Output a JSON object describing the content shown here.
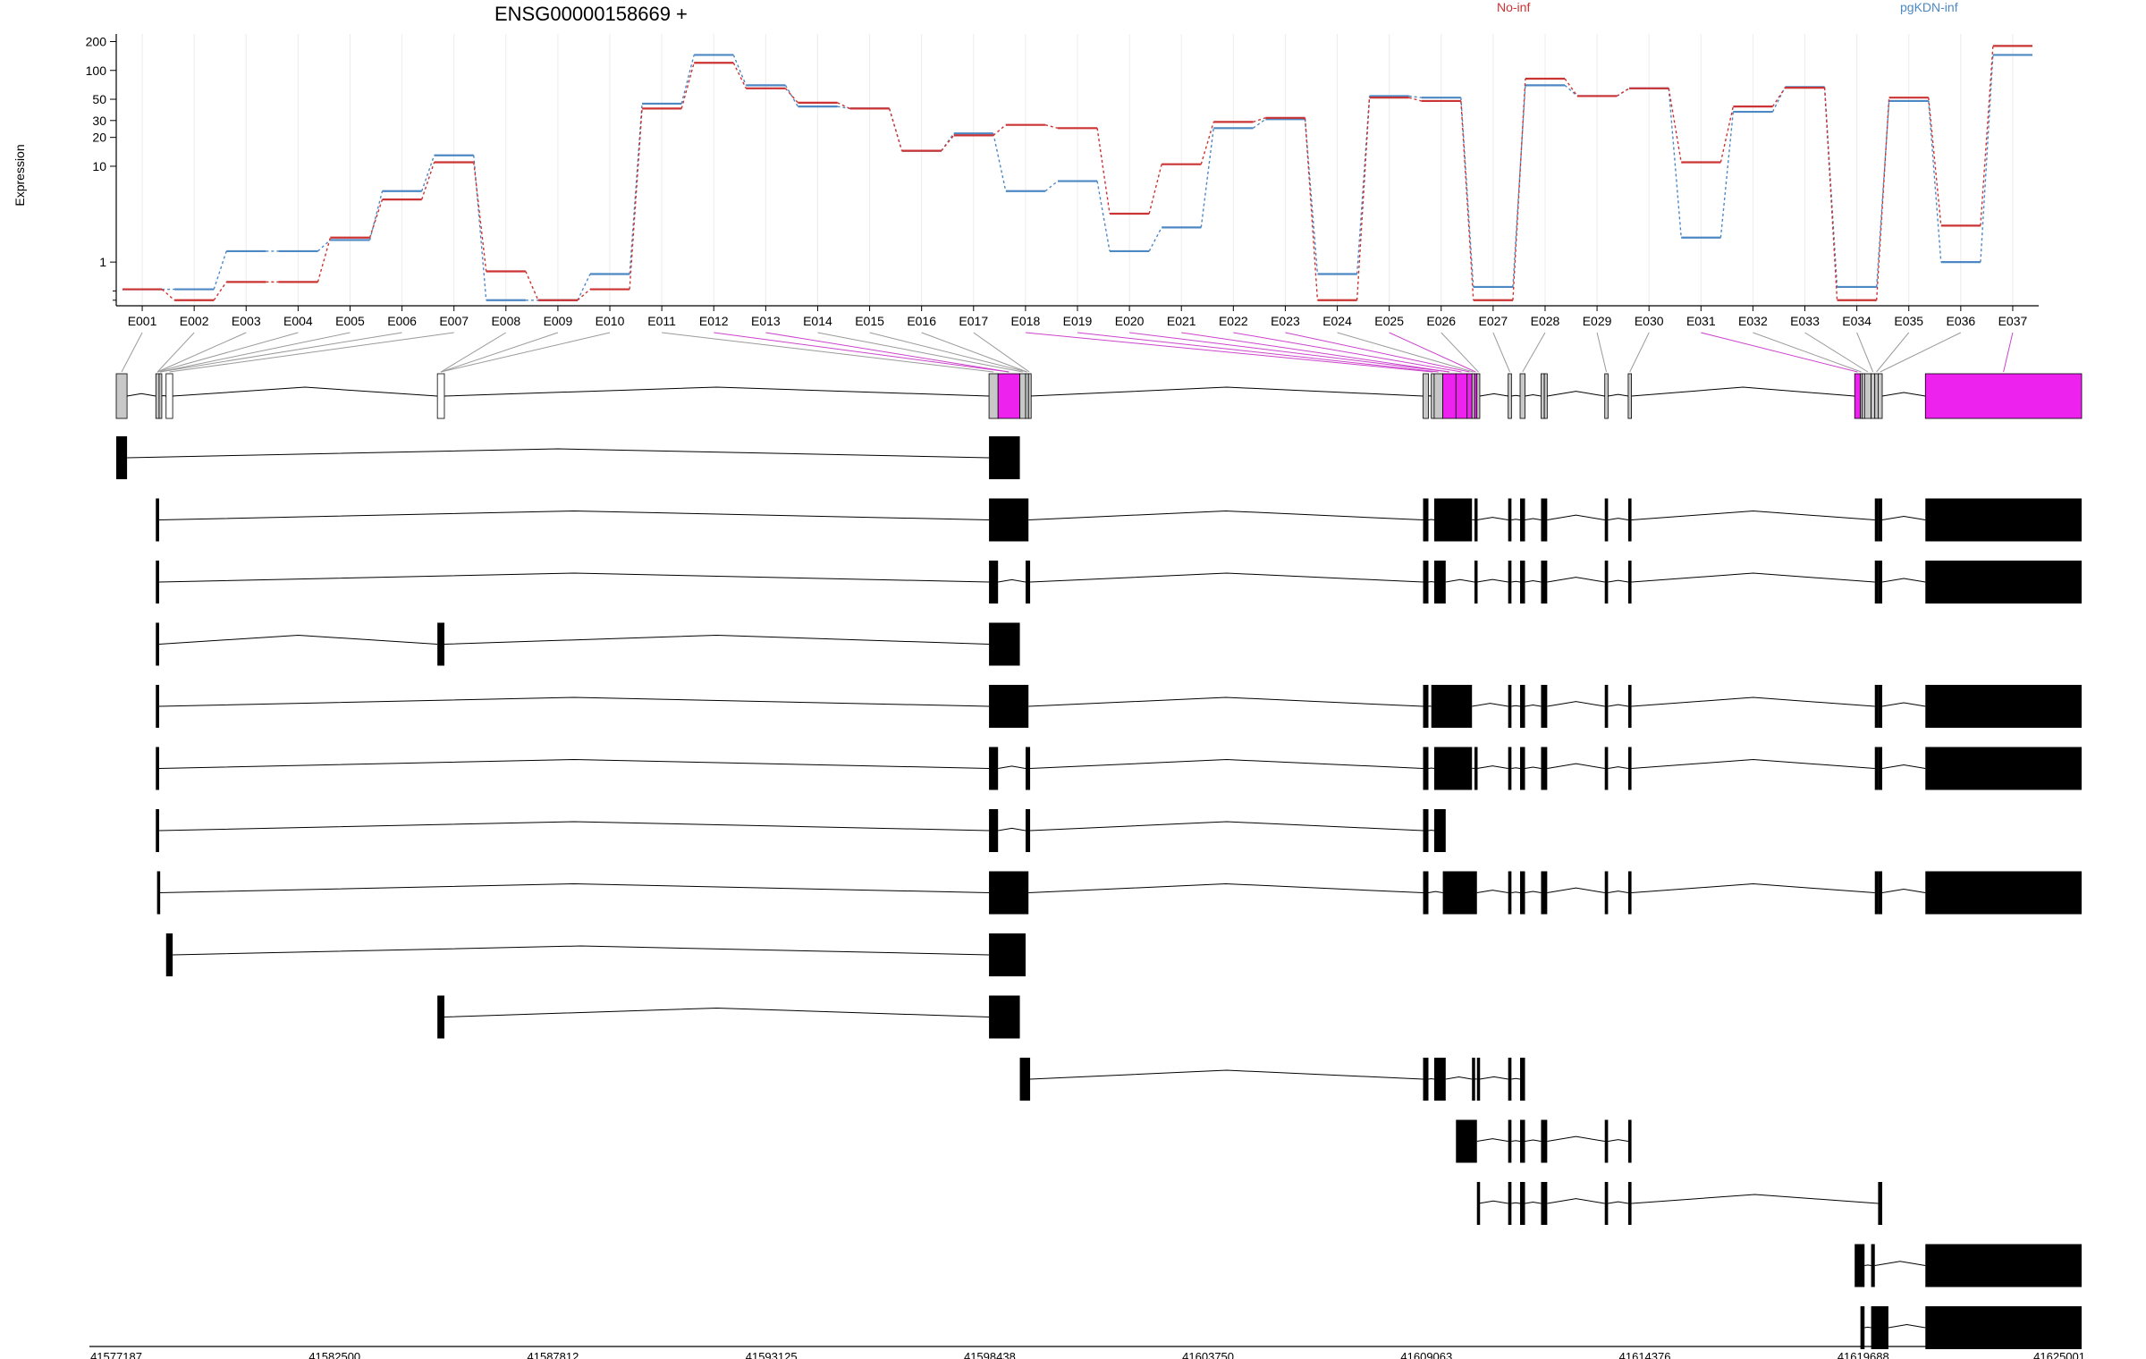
{
  "title": "ENSG00000158669 +",
  "ylabel": "Expression",
  "legend": [
    {
      "name": "No-inf",
      "color": "#cc3333"
    },
    {
      "name": "pgKDN-inf",
      "color": "#4d88c4"
    }
  ],
  "chart_data": {
    "type": "line",
    "title": "ENSG00000158669 +",
    "ylabel": "Expression",
    "y_scale": "log",
    "ylim": [
      0.35,
      240
    ],
    "y_ticks": [
      {
        "v": 1,
        "label": "1"
      },
      {
        "v": 10,
        "label": "10"
      },
      {
        "v": 20,
        "label": "20"
      },
      {
        "v": 30,
        "label": "30"
      },
      {
        "v": 50,
        "label": "50"
      },
      {
        "v": 100,
        "label": "100"
      },
      {
        "v": 200,
        "label": "200"
      }
    ],
    "y_minor_ticks": [
      0.4,
      0.5
    ],
    "categories": [
      "E001",
      "E002",
      "E003",
      "E004",
      "E005",
      "E006",
      "E007",
      "E008",
      "E009",
      "E010",
      "E011",
      "E012",
      "E013",
      "E014",
      "E015",
      "E016",
      "E017",
      "E018",
      "E019",
      "E020",
      "E021",
      "E022",
      "E023",
      "E024",
      "E025",
      "E026",
      "E027",
      "E028",
      "E029",
      "E030",
      "E031",
      "E032",
      "E033",
      "E034",
      "E035",
      "E036",
      "E037"
    ],
    "series": [
      {
        "name": "No-inf",
        "color": "#cc3333",
        "values": [
          0.52,
          0.4,
          0.62,
          0.62,
          1.8,
          4.5,
          11,
          0.8,
          0.4,
          0.52,
          40,
          120,
          65,
          46,
          40,
          14.5,
          21,
          27,
          25,
          3.2,
          10.5,
          29,
          32,
          0.4,
          52,
          48,
          0.4,
          82,
          54,
          65,
          11,
          42,
          66,
          0.4,
          52,
          2.4,
          180
        ]
      },
      {
        "name": "pgKDN-inf",
        "color": "#4d88c4",
        "values": [
          0.52,
          0.52,
          1.3,
          1.3,
          1.7,
          5.5,
          13,
          0.4,
          0.4,
          0.75,
          45,
          145,
          70,
          42,
          40,
          14.5,
          22,
          5.5,
          7.0,
          1.3,
          2.3,
          25,
          31,
          0.75,
          54,
          52,
          0.55,
          70,
          54,
          65,
          1.8,
          37,
          67,
          0.55,
          48,
          1.0,
          145
        ]
      }
    ],
    "genome": {
      "start": 41577187,
      "end": 41625001,
      "axis_ticks": [
        41577187,
        41582500,
        41587812,
        41593125,
        41598438,
        41603750,
        41609063,
        41614376,
        41619688,
        41625001
      ],
      "exons": [
        {
          "id": "E001",
          "s": 41577187,
          "e": 41577450,
          "hl": false,
          "w": false
        },
        {
          "id": "E002",
          "s": 41578150,
          "e": 41578230,
          "hl": false,
          "w": false
        },
        {
          "id": "E003",
          "s": 41578230,
          "e": 41578280,
          "hl": false,
          "w": false
        },
        {
          "id": "E004",
          "s": 41578400,
          "e": 41578560,
          "hl": false,
          "w": true
        },
        {
          "id": "E005",
          "s": 41585000,
          "e": 41585170,
          "hl": false,
          "w": true
        },
        {
          "id": "E006",
          "s": 41598420,
          "e": 41598640,
          "hl": false,
          "w": false
        },
        {
          "id": "E007",
          "s": 41598640,
          "e": 41599170,
          "hl": true,
          "w": false
        },
        {
          "id": "E008",
          "s": 41599170,
          "e": 41599310,
          "hl": false,
          "w": false
        },
        {
          "id": "E009",
          "s": 41599310,
          "e": 41599380,
          "hl": false,
          "w": false
        },
        {
          "id": "E010",
          "s": 41599380,
          "e": 41599420,
          "hl": false,
          "w": false
        },
        {
          "id": "E011",
          "s": 41608980,
          "e": 41609110,
          "hl": false,
          "w": false
        },
        {
          "id": "E012",
          "s": 41609180,
          "e": 41609250,
          "hl": false,
          "w": false
        },
        {
          "id": "E013",
          "s": 41609250,
          "e": 41609460,
          "hl": false,
          "w": false
        },
        {
          "id": "E014",
          "s": 41609460,
          "e": 41609780,
          "hl": true,
          "w": false
        },
        {
          "id": "E015",
          "s": 41609780,
          "e": 41610050,
          "hl": true,
          "w": false
        },
        {
          "id": "E016",
          "s": 41610050,
          "e": 41610170,
          "hl": true,
          "w": false
        },
        {
          "id": "E017",
          "s": 41610170,
          "e": 41610230,
          "hl": false,
          "w": false
        },
        {
          "id": "E018",
          "s": 41610230,
          "e": 41610290,
          "hl": true,
          "w": false
        },
        {
          "id": "E019",
          "s": 41610290,
          "e": 41610360,
          "hl": false,
          "w": false
        },
        {
          "id": "E020",
          "s": 41611050,
          "e": 41611130,
          "hl": false,
          "w": false
        },
        {
          "id": "E021",
          "s": 41611340,
          "e": 41611460,
          "hl": false,
          "w": false
        },
        {
          "id": "E022",
          "s": 41611850,
          "e": 41611930,
          "hl": false,
          "w": false
        },
        {
          "id": "E023",
          "s": 41611930,
          "e": 41612000,
          "hl": false,
          "w": false
        },
        {
          "id": "E024",
          "s": 41613400,
          "e": 41613480,
          "hl": false,
          "w": false
        },
        {
          "id": "E025",
          "s": 41613970,
          "e": 41614050,
          "hl": false,
          "w": false
        },
        {
          "id": "E026",
          "s": 41619480,
          "e": 41619620,
          "hl": true,
          "w": false
        },
        {
          "id": "E027",
          "s": 41619620,
          "e": 41619660,
          "hl": false,
          "w": false
        },
        {
          "id": "E028",
          "s": 41619660,
          "e": 41619720,
          "hl": false,
          "w": false
        },
        {
          "id": "E029",
          "s": 41619720,
          "e": 41619880,
          "hl": false,
          "w": false
        },
        {
          "id": "E030",
          "s": 41619880,
          "e": 41619970,
          "hl": false,
          "w": false
        },
        {
          "id": "E031",
          "s": 41619970,
          "e": 41620050,
          "hl": false,
          "w": false
        },
        {
          "id": "E032",
          "s": 41620050,
          "e": 41620150,
          "hl": false,
          "w": false
        },
        {
          "id": "E033",
          "s": 41621200,
          "e": 41625001,
          "hl": true,
          "w": false
        }
      ],
      "connectors": [
        {
          "cat": 0,
          "exon": 0,
          "hl": false
        },
        {
          "cat": 1,
          "exon": 1,
          "hl": false
        },
        {
          "cat": 2,
          "exon": 1,
          "hl": false
        },
        {
          "cat": 3,
          "exon": 1,
          "hl": false
        },
        {
          "cat": 4,
          "exon": 2,
          "hl": false
        },
        {
          "cat": 5,
          "exon": 2,
          "hl": false
        },
        {
          "cat": 6,
          "exon": 3,
          "hl": false
        },
        {
          "cat": 7,
          "exon": 4,
          "hl": false
        },
        {
          "cat": 8,
          "exon": 4,
          "hl": false
        },
        {
          "cat": 9,
          "exon": 4,
          "hl": false
        },
        {
          "cat": 10,
          "exon": 5,
          "hl": false
        },
        {
          "cat": 11,
          "exon": 6,
          "hl": true
        },
        {
          "cat": 12,
          "exon": 6,
          "hl": true
        },
        {
          "cat": 13,
          "exon": 7,
          "hl": false
        },
        {
          "cat": 14,
          "exon": 8,
          "hl": false
        },
        {
          "cat": 15,
          "exon": 8,
          "hl": false
        },
        {
          "cat": 16,
          "exon": 9,
          "hl": false
        },
        {
          "cat": 17,
          "exon": 11,
          "hl": true
        },
        {
          "cat": 18,
          "exon": 12,
          "hl": true
        },
        {
          "cat": 19,
          "exon": 13,
          "hl": true
        },
        {
          "cat": 20,
          "exon": 13,
          "hl": true
        },
        {
          "cat": 21,
          "exon": 14,
          "hl": true
        },
        {
          "cat": 22,
          "exon": 15,
          "hl": true
        },
        {
          "cat": 23,
          "exon": 16,
          "hl": false
        },
        {
          "cat": 24,
          "exon": 17,
          "hl": true
        },
        {
          "cat": 25,
          "exon": 18,
          "hl": false
        },
        {
          "cat": 26,
          "exon": 19,
          "hl": false
        },
        {
          "cat": 27,
          "exon": 20,
          "hl": false
        },
        {
          "cat": 28,
          "exon": 23,
          "hl": false
        },
        {
          "cat": 29,
          "exon": 24,
          "hl": false
        },
        {
          "cat": 30,
          "exon": 25,
          "hl": true
        },
        {
          "cat": 31,
          "exon": 26,
          "hl": false
        },
        {
          "cat": 32,
          "exon": 28,
          "hl": false
        },
        {
          "cat": 33,
          "exon": 29,
          "hl": false
        },
        {
          "cat": 34,
          "exon": 30,
          "hl": false
        },
        {
          "cat": 35,
          "exon": 31,
          "hl": false
        },
        {
          "cat": 36,
          "exon": 32,
          "hl": true
        }
      ],
      "transcripts": [
        [
          [
            41577187,
            41577450
          ],
          [
            41598420,
            41599170
          ]
        ],
        [
          [
            41578150,
            41578230
          ],
          [
            41598420,
            41599380
          ],
          [
            41608980,
            41609110
          ],
          [
            41609250,
            41610170
          ],
          [
            41610230,
            41610290
          ],
          [
            41611050,
            41611130
          ],
          [
            41611340,
            41611460
          ],
          [
            41611850,
            41612000
          ],
          [
            41613400,
            41613480
          ],
          [
            41613970,
            41614050
          ],
          [
            41619970,
            41620050
          ],
          [
            41620050,
            41620150
          ],
          [
            41621200,
            41625001
          ]
        ],
        [
          [
            41578150,
            41578230
          ],
          [
            41598420,
            41598640
          ],
          [
            41599310,
            41599420
          ],
          [
            41608980,
            41609110
          ],
          [
            41609250,
            41609530
          ],
          [
            41610230,
            41610290
          ],
          [
            41611050,
            41611130
          ],
          [
            41611340,
            41611460
          ],
          [
            41611850,
            41612000
          ],
          [
            41613400,
            41613480
          ],
          [
            41613970,
            41614050
          ],
          [
            41619970,
            41620050
          ],
          [
            41620050,
            41620150
          ],
          [
            41621200,
            41625001
          ]
        ],
        [
          [
            41578150,
            41578230
          ],
          [
            41585000,
            41585170
          ],
          [
            41598420,
            41599170
          ]
        ],
        [
          [
            41578150,
            41578230
          ],
          [
            41598420,
            41599380
          ],
          [
            41608980,
            41609110
          ],
          [
            41609180,
            41609250
          ],
          [
            41609250,
            41610170
          ],
          [
            41611050,
            41611130
          ],
          [
            41611340,
            41611460
          ],
          [
            41611850,
            41612000
          ],
          [
            41613400,
            41613480
          ],
          [
            41613970,
            41614050
          ],
          [
            41619970,
            41620050
          ],
          [
            41620050,
            41620150
          ],
          [
            41621200,
            41625001
          ]
        ],
        [
          [
            41578150,
            41578230
          ],
          [
            41598420,
            41598640
          ],
          [
            41599310,
            41599420
          ],
          [
            41608980,
            41609110
          ],
          [
            41609250,
            41610170
          ],
          [
            41610230,
            41610290
          ],
          [
            41611050,
            41611130
          ],
          [
            41611340,
            41611460
          ],
          [
            41611850,
            41612000
          ],
          [
            41613400,
            41613480
          ],
          [
            41613970,
            41614050
          ],
          [
            41619970,
            41620050
          ],
          [
            41620050,
            41620150
          ],
          [
            41621200,
            41625001
          ]
        ],
        [
          [
            41578150,
            41578230
          ],
          [
            41598420,
            41598640
          ],
          [
            41599310,
            41599420
          ],
          [
            41608980,
            41609110
          ],
          [
            41609250,
            41609530
          ]
        ],
        [
          [
            41578180,
            41578230
          ],
          [
            41598420,
            41599380
          ],
          [
            41608980,
            41609110
          ],
          [
            41609460,
            41610290
          ],
          [
            41611050,
            41611130
          ],
          [
            41611340,
            41611460
          ],
          [
            41611850,
            41612000
          ],
          [
            41613400,
            41613480
          ],
          [
            41613970,
            41614050
          ],
          [
            41619970,
            41620050
          ],
          [
            41620050,
            41620150
          ],
          [
            41621200,
            41625001
          ]
        ],
        [
          [
            41578400,
            41578560
          ],
          [
            41598420,
            41599310
          ]
        ],
        [
          [
            41585000,
            41585170
          ],
          [
            41598420,
            41599170
          ]
        ],
        [
          [
            41599170,
            41599420
          ],
          [
            41608980,
            41609110
          ],
          [
            41609250,
            41609530
          ],
          [
            41610170,
            41610230
          ],
          [
            41610290,
            41610360
          ],
          [
            41611050,
            41611130
          ],
          [
            41611340,
            41611460
          ]
        ],
        [
          [
            41609780,
            41610290
          ],
          [
            41611050,
            41611130
          ],
          [
            41611340,
            41611460
          ],
          [
            41611850,
            41612000
          ],
          [
            41613400,
            41613480
          ],
          [
            41613970,
            41614050
          ]
        ],
        [
          [
            41610290,
            41610330
          ],
          [
            41611050,
            41611130
          ],
          [
            41611340,
            41611460
          ],
          [
            41611850,
            41612000
          ],
          [
            41613400,
            41613480
          ],
          [
            41613970,
            41614050
          ],
          [
            41620050,
            41620150
          ]
        ],
        [
          [
            41619480,
            41619720
          ],
          [
            41619880,
            41619970
          ],
          [
            41621200,
            41625001
          ]
        ],
        [
          [
            41619620,
            41619720
          ],
          [
            41619880,
            41620300
          ],
          [
            41621200,
            41625001
          ]
        ]
      ]
    }
  }
}
